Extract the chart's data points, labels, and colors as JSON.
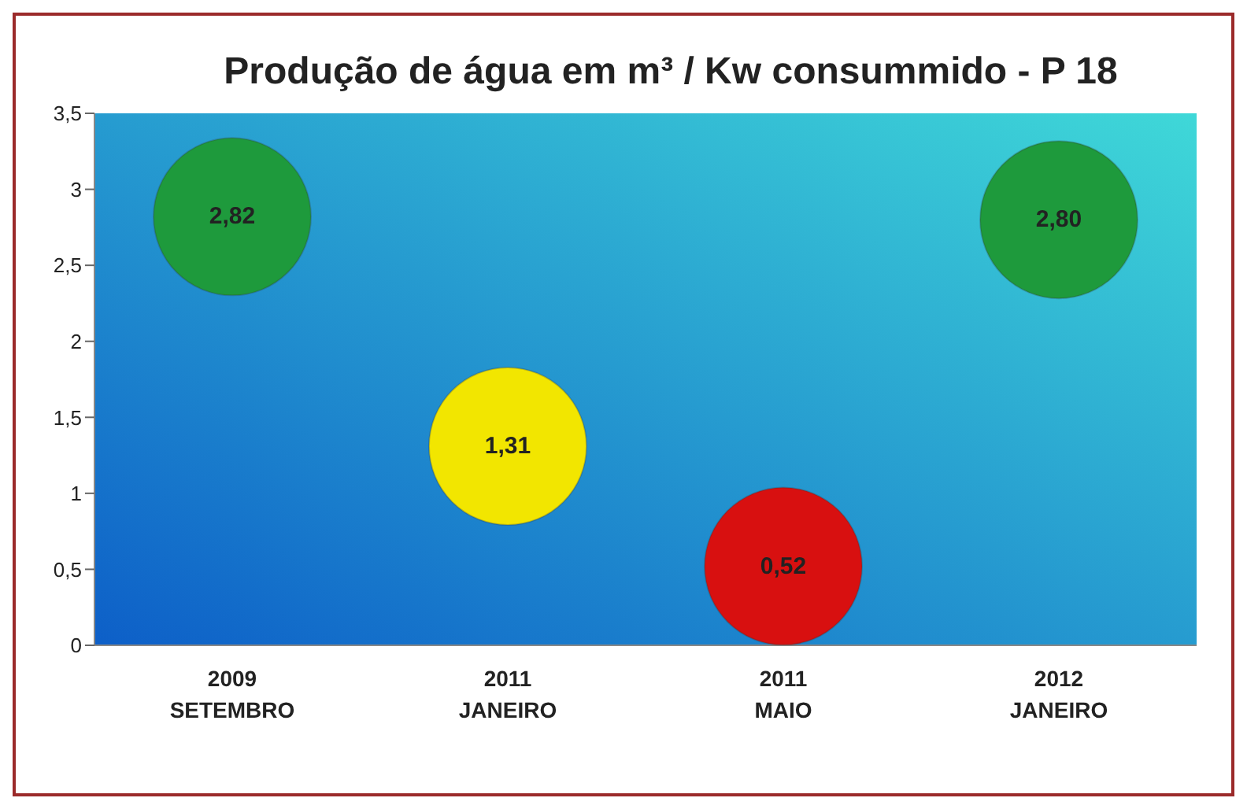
{
  "chart_data": {
    "type": "scatter",
    "title": "Produção de água em m³ / Kw consummido - P 18",
    "categories": [
      "2009\nSETEMBRO",
      "2011\nJANEIRO",
      "2011\nMAIO",
      "2012\nJANEIRO"
    ],
    "values": [
      2.82,
      1.31,
      0.52,
      2.8
    ],
    "colors": [
      "#1e9a3c",
      "#f2e600",
      "#d81010",
      "#1e9a3c"
    ],
    "value_labels": [
      "2,82",
      "1,31",
      "0,52",
      "2,80"
    ],
    "marker": "circle",
    "ylim": [
      0,
      3.5
    ],
    "yticks": [
      0,
      {
        "value": 0.5,
        "label": "0,5"
      },
      1,
      {
        "value": 1.5,
        "label": "1,5"
      },
      2,
      {
        "value": 2.5,
        "label": "2,5"
      },
      3,
      {
        "value": 3.5,
        "label": "3,5"
      }
    ],
    "grid": false
  }
}
